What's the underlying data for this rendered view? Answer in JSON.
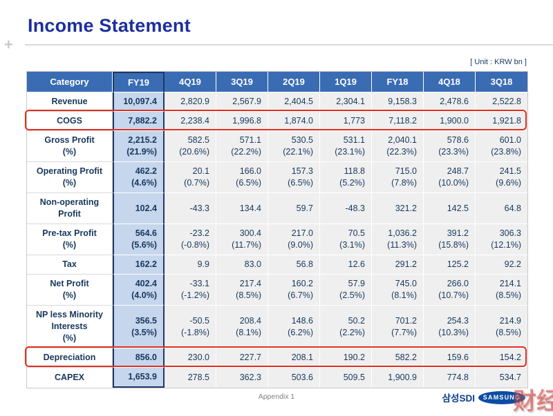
{
  "slide": {
    "title": "Income Statement",
    "unit_label": "[ Unit : KRW bn ]",
    "footer": "Appendix 1",
    "watermark": "财经",
    "logo": {
      "korean": "삼성SDI",
      "oval": "SAMSUNG"
    },
    "colors": {
      "title_blue": "#1c2f9c",
      "header_blue": "#3a6cb4",
      "fy19_fill": "#c6d6ec",
      "fy19_border": "#1f3864",
      "text_navy": "#17375e",
      "highlight_red": "#e02f1f",
      "cell_gray": "#efefef"
    }
  },
  "table": {
    "columns": [
      "Category",
      "FY19",
      "4Q19",
      "3Q19",
      "2Q19",
      "1Q19",
      "FY18",
      "4Q18",
      "3Q18"
    ],
    "rows": [
      {
        "category": [
          "Revenue"
        ],
        "redbox": false,
        "cells": [
          [
            "10,097.4"
          ],
          [
            "2,820.9"
          ],
          [
            "2,567.9"
          ],
          [
            "2,404.5"
          ],
          [
            "2,304.1"
          ],
          [
            "9,158.3"
          ],
          [
            "2,478.6"
          ],
          [
            "2,522.8"
          ]
        ]
      },
      {
        "category": [
          "COGS"
        ],
        "redbox": true,
        "cells": [
          [
            "7,882.2"
          ],
          [
            "2,238.4"
          ],
          [
            "1,996.8"
          ],
          [
            "1,874.0"
          ],
          [
            "1,773"
          ],
          [
            "7,118.2"
          ],
          [
            "1,900.0"
          ],
          [
            "1,921.8"
          ]
        ]
      },
      {
        "category": [
          "Gross Profit",
          "(%)"
        ],
        "redbox": false,
        "cells": [
          [
            "2,215.2",
            "(21.9%)"
          ],
          [
            "582.5",
            "(20.6%)"
          ],
          [
            "571.1",
            "(22.2%)"
          ],
          [
            "530.5",
            "(22.1%)"
          ],
          [
            "531.1",
            "(23.1%)"
          ],
          [
            "2,040.1",
            "(22.3%)"
          ],
          [
            "578.6",
            "(23.3%)"
          ],
          [
            "601.0",
            "(23.8%)"
          ]
        ]
      },
      {
        "category": [
          "Operating Profit",
          "(%)"
        ],
        "redbox": false,
        "cells": [
          [
            "462.2",
            "(4.6%)"
          ],
          [
            "20.1",
            "(0.7%)"
          ],
          [
            "166.0",
            "(6.5%)"
          ],
          [
            "157.3",
            "(6.5%)"
          ],
          [
            "118.8",
            "(5.2%)"
          ],
          [
            "715.0",
            "(7.8%)"
          ],
          [
            "248.7",
            "(10.0%)"
          ],
          [
            "241.5",
            "(9.6%)"
          ]
        ]
      },
      {
        "category": [
          "Non-operating",
          "Profit"
        ],
        "redbox": false,
        "cells": [
          [
            "102.4"
          ],
          [
            "-43.3"
          ],
          [
            "134.4"
          ],
          [
            "59.7"
          ],
          [
            "-48.3"
          ],
          [
            "321.2"
          ],
          [
            "142.5"
          ],
          [
            "64.8"
          ]
        ]
      },
      {
        "category": [
          "Pre-tax Profit",
          "(%)"
        ],
        "redbox": false,
        "cells": [
          [
            "564.6",
            "(5.6%)"
          ],
          [
            "-23.2",
            "(-0.8%)"
          ],
          [
            "300.4",
            "(11.7%)"
          ],
          [
            "217.0",
            "(9.0%)"
          ],
          [
            "70.5",
            "(3.1%)"
          ],
          [
            "1,036.2",
            "(11.3%)"
          ],
          [
            "391.2",
            "(15.8%)"
          ],
          [
            "306.3",
            "(12.1%)"
          ]
        ]
      },
      {
        "category": [
          "Tax"
        ],
        "redbox": false,
        "cells": [
          [
            "162.2"
          ],
          [
            "9.9"
          ],
          [
            "83.0"
          ],
          [
            "56.8"
          ],
          [
            "12.6"
          ],
          [
            "291.2"
          ],
          [
            "125.2"
          ],
          [
            "92.2"
          ]
        ]
      },
      {
        "category": [
          "Net Profit",
          "(%)"
        ],
        "redbox": false,
        "cells": [
          [
            "402.4",
            "(4.0%)"
          ],
          [
            "-33.1",
            "(-1.2%)"
          ],
          [
            "217.4",
            "(8.5%)"
          ],
          [
            "160.2",
            "(6.7%)"
          ],
          [
            "57.9",
            "(2.5%)"
          ],
          [
            "745.0",
            "(8.1%)"
          ],
          [
            "266.0",
            "(10.7%)"
          ],
          [
            "214.1",
            "(8.5%)"
          ]
        ]
      },
      {
        "category": [
          "NP less Minority",
          "Interests",
          "(%)"
        ],
        "redbox": false,
        "cells": [
          [
            "356.5",
            "(3.5%)"
          ],
          [
            "-50.5",
            "(-1.8%)"
          ],
          [
            "208.4",
            "(8.1%)"
          ],
          [
            "148.6",
            "(6.2%)"
          ],
          [
            "50.2",
            "(2.2%)"
          ],
          [
            "701.2",
            "(7.7%)"
          ],
          [
            "254.3",
            "(10.3%)"
          ],
          [
            "214.9",
            "(8.5%)"
          ]
        ]
      },
      {
        "category": [
          "Depreciation"
        ],
        "redbox": true,
        "cells": [
          [
            "856.0"
          ],
          [
            "230.0"
          ],
          [
            "227.7"
          ],
          [
            "208.1"
          ],
          [
            "190.2"
          ],
          [
            "582.2"
          ],
          [
            "159.6"
          ],
          [
            "154.2"
          ]
        ]
      },
      {
        "category": [
          "CAPEX"
        ],
        "redbox": false,
        "cells": [
          [
            "1,653.9"
          ],
          [
            "278.5"
          ],
          [
            "362.3"
          ],
          [
            "503.6"
          ],
          [
            "509.5"
          ],
          [
            "1,900.9"
          ],
          [
            "774.8"
          ],
          [
            "534.7"
          ]
        ]
      }
    ]
  }
}
